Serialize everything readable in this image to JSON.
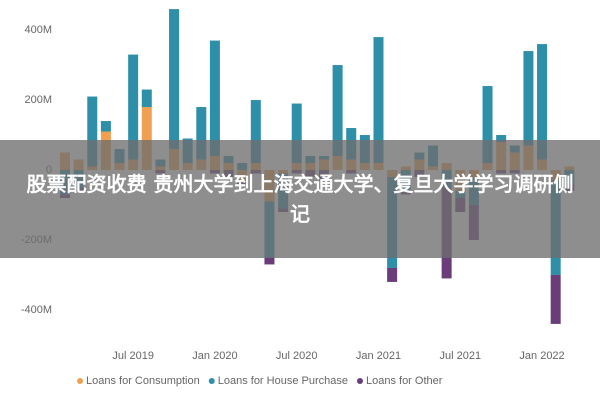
{
  "chart_data": {
    "type": "bar",
    "stacked": true,
    "categories": [
      null,
      null,
      null,
      null,
      null,
      "Jul 2019",
      null,
      null,
      null,
      null,
      null,
      "Jan 2020",
      null,
      null,
      null,
      null,
      null,
      "Jul 2020",
      null,
      null,
      null,
      null,
      null,
      "Jan 2021",
      null,
      null,
      null,
      null,
      null,
      "Jul 2021",
      null,
      null,
      null,
      null,
      null,
      "Jan 2022",
      null,
      null
    ],
    "series": [
      {
        "name": "Loans for Consumption",
        "color": "#f0a050",
        "values": [
          50,
          30,
          10,
          110,
          20,
          30,
          180,
          10,
          60,
          20,
          30,
          40,
          20,
          -30,
          20,
          -90,
          -10,
          20,
          20,
          30,
          40,
          30,
          20,
          20,
          -20,
          10,
          30,
          10,
          20,
          -60,
          -20,
          20,
          80,
          50,
          70,
          30,
          -30,
          10
        ]
      },
      {
        "name": "Loans for House Purchase",
        "color": "#2e8fa8",
        "values": [
          -70,
          -50,
          200,
          30,
          40,
          300,
          50,
          20,
          400,
          70,
          150,
          330,
          20,
          20,
          180,
          -160,
          -100,
          170,
          20,
          10,
          260,
          90,
          80,
          360,
          -260,
          -60,
          20,
          60,
          -50,
          -20,
          -80,
          220,
          20,
          20,
          270,
          330,
          -270,
          -40
        ]
      },
      {
        "name": "Loans for Other",
        "color": "#6a3d7a",
        "values": [
          -10,
          -10,
          0,
          0,
          0,
          0,
          0,
          -10,
          0,
          0,
          0,
          -10,
          -20,
          -10,
          -10,
          -20,
          -10,
          -10,
          -20,
          -30,
          0,
          -10,
          0,
          0,
          -40,
          -10,
          -20,
          0,
          -260,
          -40,
          -100,
          0,
          -10,
          -10,
          0,
          0,
          -140,
          -20
        ]
      }
    ],
    "ylim": [
      -486,
      486
    ],
    "yticks": [
      {
        "value": 400,
        "label": "400M"
      },
      {
        "value": 200,
        "label": "200M"
      },
      0,
      {
        "value": -200,
        "label": "-200M"
      },
      {
        "value": -400,
        "label": "-400M"
      }
    ]
  },
  "banner": {
    "text": "股票配资收费 贵州大学到上海交通大学、复旦大学学习调研侧记"
  }
}
